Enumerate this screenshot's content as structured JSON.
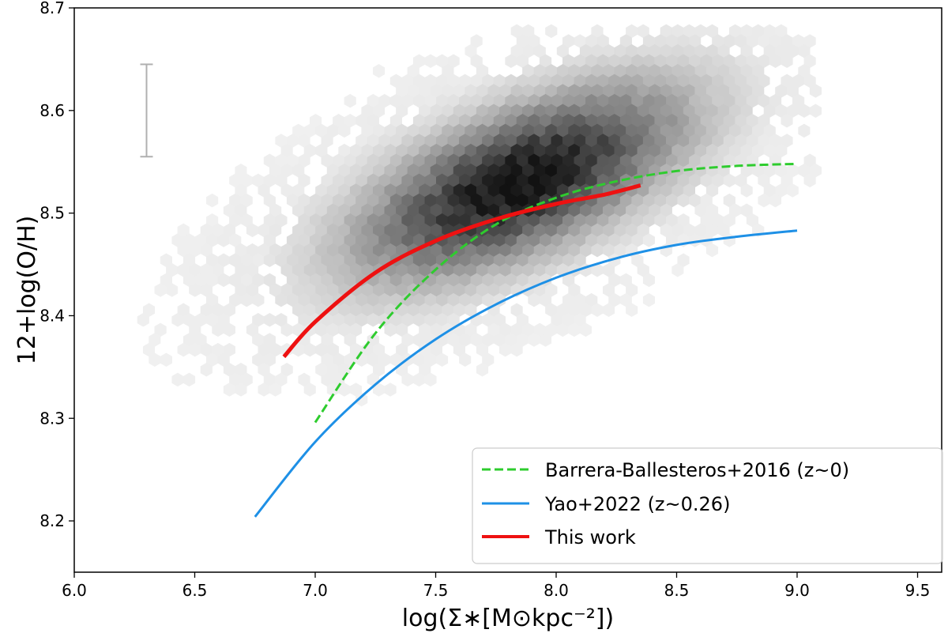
{
  "chart_data": {
    "type": "scatter",
    "subtype": "hexbin density with fitted relations",
    "xlabel": "log(Σ∗[M⊙kpc⁻²])",
    "ylabel": "12+log(O/H)",
    "xlim": [
      6.0,
      9.6
    ],
    "ylim": [
      8.15,
      8.7
    ],
    "xticks": [
      "6.0",
      "6.5",
      "7.0",
      "7.5",
      "8.0",
      "8.5",
      "9.0",
      "9.5"
    ],
    "yticks": [
      "8.2",
      "8.3",
      "8.4",
      "8.5",
      "8.6",
      "8.7"
    ],
    "density": {
      "colormap": "Greys",
      "peak": [
        7.85,
        8.53
      ],
      "covariance": [
        [
          0.18,
          0.0155
        ],
        [
          0.0155,
          0.0034
        ]
      ],
      "x_extent": [
        6.15,
        9.1
      ],
      "y_extent": [
        8.17,
        8.68
      ]
    },
    "errorbar": {
      "x": 6.3,
      "y_low": 8.555,
      "y_high": 8.645,
      "color": "#b0b0b0"
    },
    "series": [
      {
        "name": "Barrera-Ballesteros+2016 (z~0)",
        "style": "dashed",
        "color": "#2ecc2e",
        "x": [
          7.0,
          7.25,
          7.5,
          7.75,
          8.0,
          8.25,
          8.5,
          8.75,
          9.0
        ],
        "y": [
          8.296,
          8.383,
          8.445,
          8.489,
          8.515,
          8.531,
          8.541,
          8.546,
          8.548
        ]
      },
      {
        "name": "Yao+2022 (z~0.26)",
        "style": "solid",
        "color": "#1e90e6",
        "x": [
          6.75,
          7.0,
          7.25,
          7.5,
          7.75,
          8.0,
          8.25,
          8.5,
          8.75,
          9.0
        ],
        "y": [
          8.204,
          8.277,
          8.333,
          8.377,
          8.411,
          8.437,
          8.456,
          8.469,
          8.477,
          8.483
        ]
      },
      {
        "name": "This work",
        "style": "solid-thick",
        "color": "#ee1111",
        "x": [
          6.87,
          7.0,
          7.25,
          7.5,
          7.75,
          8.0,
          8.2,
          8.35
        ],
        "y": [
          8.36,
          8.394,
          8.442,
          8.473,
          8.494,
          8.509,
          8.518,
          8.527
        ]
      }
    ],
    "legend": {
      "position": "lower-right"
    },
    "grid": false
  }
}
